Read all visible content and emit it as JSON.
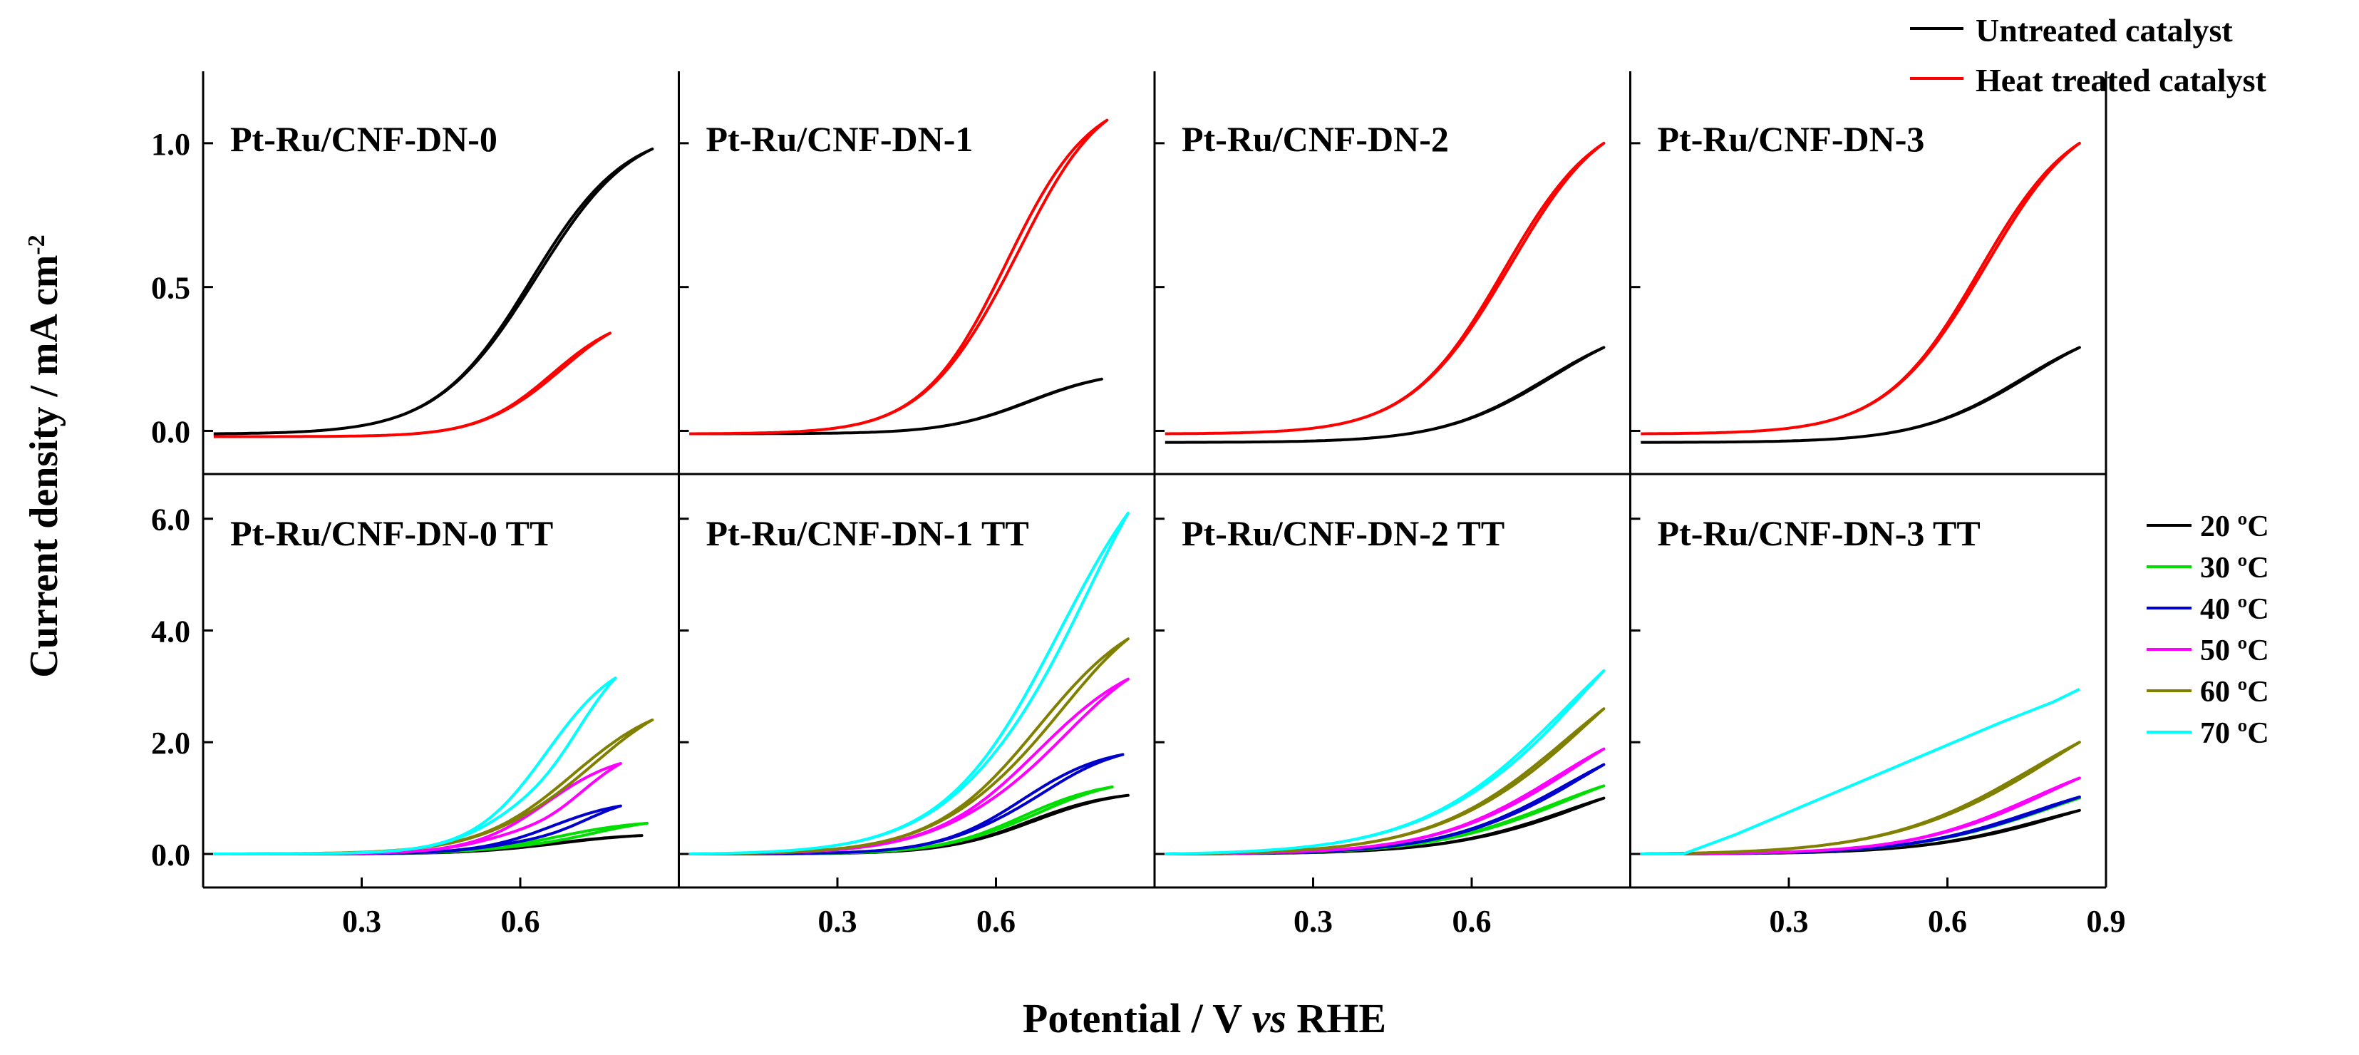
{
  "figure": {
    "ylabel": "Current density / mA cm",
    "ylabel_sup": "-2",
    "xlabel_prefix": "Potential / V ",
    "xlabel_italic": "vs",
    "xlabel_suffix": " RHE"
  },
  "colors": {
    "untreated": "#000000",
    "heat_treated": "#ff0000",
    "T20": "#000000",
    "T30": "#00dd00",
    "T40": "#0000cc",
    "T50": "#ff00ff",
    "T60": "#808000",
    "T70": "#00ffff"
  },
  "legend_top": {
    "placement": "top-right (above top row)",
    "entries": [
      {
        "label": "Untreated catalyst",
        "color": "#000000"
      },
      {
        "label": "Heat treated catalyst",
        "color": "#ff0000"
      }
    ]
  },
  "legend_bottom": {
    "placement": "right of bottom row",
    "entries": [
      {
        "label": "20 ºC",
        "color": "#000000"
      },
      {
        "label": "30 ºC",
        "color": "#00dd00"
      },
      {
        "label": "40 ºC",
        "color": "#0000cc"
      },
      {
        "label": "50 ºC",
        "color": "#ff00ff"
      },
      {
        "label": "60 ºC",
        "color": "#808000"
      },
      {
        "label": "70 ºC",
        "color": "#00ffff"
      }
    ]
  },
  "chart_data": [
    {
      "type": "line",
      "title": "Pt-Ru/CNF-DN-0",
      "row": "top",
      "xlim": [
        0.0,
        0.9
      ],
      "ylim": [
        -0.15,
        1.25
      ],
      "yticks": [
        0.0,
        0.5,
        1.0
      ],
      "ytick_labels": [
        "0.0",
        "0.5",
        "1.0"
      ],
      "xticks": [],
      "xtick_labels": [],
      "series": [
        {
          "name": "Untreated catalyst",
          "kind": "cv",
          "color": "#000000",
          "peak": 0.99,
          "onset": 0.4,
          "half": 0.62,
          "shape": 0.09,
          "ppos": 0.85,
          "hyst": 0.04,
          "base": -0.01
        },
        {
          "name": "Heat treated catalyst",
          "kind": "cv",
          "color": "#ff0000",
          "peak": 0.36,
          "onset": 0.45,
          "half": 0.66,
          "shape": 0.07,
          "ppos": 0.77,
          "hyst": 0.06,
          "base": -0.02
        }
      ]
    },
    {
      "type": "line",
      "title": "Pt-Ru/CNF-DN-1",
      "row": "top",
      "xlim": [
        0.0,
        0.9
      ],
      "ylim": [
        -0.15,
        1.25
      ],
      "yticks": [
        0.0,
        0.5,
        1.0
      ],
      "ytick_labels": [
        "",
        "",
        ""
      ],
      "xticks": [],
      "xtick_labels": [],
      "series": [
        {
          "name": "Untreated catalyst",
          "kind": "cv",
          "color": "#000000",
          "peak": 0.19,
          "onset": 0.4,
          "half": 0.66,
          "shape": 0.08,
          "ppos": 0.8,
          "hyst": 0.02,
          "base": -0.01
        },
        {
          "name": "Heat treated catalyst",
          "kind": "cv",
          "color": "#ff0000",
          "peak": 1.09,
          "onset": 0.35,
          "half": 0.62,
          "shape": 0.08,
          "ppos": 0.81,
          "hyst": 0.08,
          "base": -0.01
        }
      ]
    },
    {
      "type": "line",
      "title": "Pt-Ru/CNF-DN-2",
      "row": "top",
      "xlim": [
        0.0,
        0.9
      ],
      "ylim": [
        -0.15,
        1.25
      ],
      "yticks": [
        0.0,
        0.5,
        1.0
      ],
      "ytick_labels": [
        "",
        "",
        ""
      ],
      "xticks": [],
      "xtick_labels": [],
      "series": [
        {
          "name": "Untreated catalyst",
          "kind": "cv",
          "color": "#000000",
          "peak": 0.33,
          "onset": 0.38,
          "half": 0.74,
          "shape": 0.1,
          "ppos": 0.85,
          "hyst": 0.03,
          "base": -0.04
        },
        {
          "name": "Heat treated catalyst",
          "kind": "cv",
          "color": "#ff0000",
          "peak": 1.01,
          "onset": 0.33,
          "half": 0.66,
          "shape": 0.09,
          "ppos": 0.85,
          "hyst": 0.04,
          "base": -0.01
        }
      ]
    },
    {
      "type": "line",
      "title": "Pt-Ru/CNF-DN-3",
      "row": "top",
      "xlim": [
        0.0,
        0.9
      ],
      "ylim": [
        -0.15,
        1.25
      ],
      "yticks": [
        0.0,
        0.5,
        1.0
      ],
      "ytick_labels": [
        "",
        "",
        ""
      ],
      "xticks": [],
      "xtick_labels": [],
      "series": [
        {
          "name": "Untreated catalyst",
          "kind": "cv",
          "color": "#000000",
          "peak": 0.33,
          "onset": 0.38,
          "half": 0.74,
          "shape": 0.1,
          "ppos": 0.85,
          "hyst": 0.03,
          "base": -0.04
        },
        {
          "name": "Heat treated catalyst",
          "kind": "cv",
          "color": "#ff0000",
          "peak": 1.01,
          "onset": 0.33,
          "half": 0.66,
          "shape": 0.09,
          "ppos": 0.85,
          "hyst": 0.04,
          "base": -0.01
        }
      ]
    },
    {
      "type": "line",
      "title": "Pt-Ru/CNF-DN-0 TT",
      "row": "bottom",
      "xlim": [
        0.0,
        0.9
      ],
      "ylim": [
        -0.6,
        6.8
      ],
      "yticks": [
        0.0,
        2.0,
        4.0,
        6.0
      ],
      "ytick_labels": [
        "0.0",
        "2.0",
        "4.0",
        "6.0"
      ],
      "xticks": [
        0.3,
        0.6
      ],
      "xtick_labels": [
        "0.3",
        "0.6"
      ],
      "series": [
        {
          "name": "20 ºC",
          "kind": "cv",
          "color": "#000000",
          "peak": 0.33,
          "onset": 0.42,
          "half": 0.66,
          "shape": 0.08,
          "ppos": 0.83,
          "hyst": 0.05,
          "base": 0.0
        },
        {
          "name": "30 ºC",
          "kind": "cv",
          "color": "#00dd00",
          "peak": 0.55,
          "onset": 0.42,
          "half": 0.67,
          "shape": 0.08,
          "ppos": 0.84,
          "hyst": 0.25,
          "base": 0.0
        },
        {
          "name": "40 ºC",
          "kind": "cv",
          "color": "#0000cc",
          "peak": 0.86,
          "onset": 0.42,
          "half": 0.66,
          "shape": 0.07,
          "ppos": 0.79,
          "hyst": 0.3,
          "base": 0.0
        },
        {
          "name": "50 ºC",
          "kind": "cv",
          "color": "#ff00ff",
          "peak": 1.62,
          "onset": 0.42,
          "half": 0.65,
          "shape": 0.07,
          "ppos": 0.79,
          "hyst": 0.33,
          "base": 0.0
        },
        {
          "name": "60 ºC",
          "kind": "cv",
          "color": "#808000",
          "peak": 2.4,
          "onset": 0.42,
          "half": 0.7,
          "shape": 0.09,
          "ppos": 0.85,
          "hyst": 0.1,
          "base": 0.0
        },
        {
          "name": "70 ºC",
          "kind": "cv",
          "color": "#00ffff",
          "peak": 3.15,
          "onset": 0.4,
          "half": 0.65,
          "shape": 0.07,
          "ppos": 0.78,
          "hyst": 0.25,
          "base": 0.0
        }
      ]
    },
    {
      "type": "line",
      "title": "Pt-Ru/CNF-DN-1 TT",
      "row": "bottom",
      "xlim": [
        0.0,
        0.9
      ],
      "ylim": [
        -0.6,
        6.8
      ],
      "yticks": [
        0.0,
        2.0,
        4.0,
        6.0
      ],
      "ytick_labels": [
        "",
        "",
        "",
        ""
      ],
      "xticks": [
        0.3,
        0.6
      ],
      "xtick_labels": [
        "0.3",
        "0.6"
      ],
      "series": [
        {
          "name": "20 ºC",
          "kind": "cv",
          "color": "#000000",
          "peak": 1.05,
          "onset": 0.4,
          "half": 0.66,
          "shape": 0.08,
          "ppos": 0.85,
          "hyst": 0.05,
          "base": 0.0
        },
        {
          "name": "30 ºC",
          "kind": "cv",
          "color": "#00dd00",
          "peak": 1.2,
          "onset": 0.4,
          "half": 0.65,
          "shape": 0.08,
          "ppos": 0.82,
          "hyst": 0.1,
          "base": 0.0
        },
        {
          "name": "40 ºC",
          "kind": "cv",
          "color": "#0000cc",
          "peak": 1.78,
          "onset": 0.4,
          "half": 0.65,
          "shape": 0.08,
          "ppos": 0.84,
          "hyst": 0.12,
          "base": 0.0
        },
        {
          "name": "50 ºC",
          "kind": "cv",
          "color": "#ff00ff",
          "peak": 3.13,
          "onset": 0.38,
          "half": 0.68,
          "shape": 0.1,
          "ppos": 0.85,
          "hyst": 0.12,
          "base": 0.0
        },
        {
          "name": "60 ºC",
          "kind": "cv",
          "color": "#808000",
          "peak": 3.85,
          "onset": 0.38,
          "half": 0.68,
          "shape": 0.1,
          "ppos": 0.85,
          "hyst": 0.1,
          "base": 0.0
        },
        {
          "name": "70 ºC",
          "kind": "cv",
          "color": "#00ffff",
          "peak": 6.1,
          "onset": 0.36,
          "half": 0.72,
          "shape": 0.11,
          "ppos": 0.85,
          "hyst": 0.1,
          "base": 0.0
        }
      ]
    },
    {
      "type": "line",
      "title": "Pt-Ru/CNF-DN-2 TT",
      "row": "bottom",
      "xlim": [
        0.0,
        0.9
      ],
      "ylim": [
        -0.6,
        6.8
      ],
      "yticks": [
        0.0,
        2.0,
        4.0,
        6.0
      ],
      "ytick_labels": [
        "",
        "",
        "",
        ""
      ],
      "xticks": [
        0.3,
        0.6
      ],
      "xtick_labels": [
        "0.3",
        "0.6"
      ],
      "series": [
        {
          "name": "20 ºC",
          "kind": "cv",
          "color": "#000000",
          "peak": 1.0,
          "onset": 0.45,
          "half": 0.78,
          "shape": 0.12,
          "ppos": 0.85,
          "hyst": 0.05,
          "base": 0.0
        },
        {
          "name": "30 ºC",
          "kind": "cv",
          "color": "#00dd00",
          "peak": 1.22,
          "onset": 0.42,
          "half": 0.75,
          "shape": 0.12,
          "ppos": 0.85,
          "hyst": 0.05,
          "base": 0.0
        },
        {
          "name": "40 ºC",
          "kind": "cv",
          "color": "#0000cc",
          "peak": 1.6,
          "onset": 0.42,
          "half": 0.78,
          "shape": 0.12,
          "ppos": 0.85,
          "hyst": 0.05,
          "base": 0.0
        },
        {
          "name": "50 ºC",
          "kind": "cv",
          "color": "#ff00ff",
          "peak": 1.88,
          "onset": 0.42,
          "half": 0.76,
          "shape": 0.12,
          "ppos": 0.85,
          "hyst": 0.05,
          "base": 0.0
        },
        {
          "name": "60 ºC",
          "kind": "cv",
          "color": "#808000",
          "peak": 2.6,
          "onset": 0.4,
          "half": 0.78,
          "shape": 0.13,
          "ppos": 0.85,
          "hyst": 0.05,
          "base": 0.0
        },
        {
          "name": "70 ºC",
          "kind": "cv",
          "color": "#00ffff",
          "peak": 3.28,
          "onset": 0.36,
          "half": 0.78,
          "shape": 0.14,
          "ppos": 0.85,
          "hyst": 0.05,
          "base": 0.0
        }
      ]
    },
    {
      "type": "line",
      "title": "Pt-Ru/CNF-DN-3 TT",
      "row": "bottom",
      "xlim": [
        0.0,
        0.9
      ],
      "ylim": [
        -0.6,
        6.8
      ],
      "yticks": [
        0.0,
        2.0,
        4.0,
        6.0
      ],
      "ytick_labels": [
        "",
        "",
        "",
        ""
      ],
      "xticks": [
        0.3,
        0.6,
        0.9
      ],
      "xtick_labels": [
        "0.3",
        "0.6",
        "0.9"
      ],
      "series": [
        {
          "name": "20 ºC",
          "kind": "cv",
          "color": "#000000",
          "peak": 0.78,
          "onset": 0.44,
          "half": 0.78,
          "shape": 0.12,
          "ppos": 0.85,
          "hyst": 0.05,
          "base": 0.0
        },
        {
          "name": "30 ºC",
          "kind": "cv",
          "color": "#00dd00",
          "peak": 1.0,
          "onset": 0.42,
          "half": 0.76,
          "shape": 0.12,
          "ppos": 0.85,
          "hyst": 0.05,
          "base": 0.0
        },
        {
          "name": "40 ºC",
          "kind": "cv",
          "color": "#0000cc",
          "peak": 1.02,
          "onset": 0.42,
          "half": 0.76,
          "shape": 0.12,
          "ppos": 0.85,
          "hyst": 0.05,
          "base": 0.0
        },
        {
          "name": "50 ºC",
          "kind": "cv",
          "color": "#ff00ff",
          "peak": 1.36,
          "onset": 0.42,
          "half": 0.76,
          "shape": 0.12,
          "ppos": 0.85,
          "hyst": 0.05,
          "base": 0.0
        },
        {
          "name": "60 ºC",
          "kind": "cv",
          "color": "#808000",
          "peak": 2.0,
          "onset": 0.36,
          "half": 0.76,
          "shape": 0.14,
          "ppos": 0.85,
          "hyst": 0.05,
          "base": 0.0
        },
        {
          "name": "70 ºC",
          "kind": "linear",
          "color": "#00ffff",
          "points": [
            [
              0.02,
              0.0
            ],
            [
              0.1,
              0.0
            ],
            [
              0.2,
              0.35
            ],
            [
              0.3,
              0.75
            ],
            [
              0.4,
              1.15
            ],
            [
              0.5,
              1.55
            ],
            [
              0.6,
              1.95
            ],
            [
              0.7,
              2.35
            ],
            [
              0.8,
              2.72
            ],
            [
              0.85,
              2.95
            ]
          ]
        }
      ]
    }
  ]
}
